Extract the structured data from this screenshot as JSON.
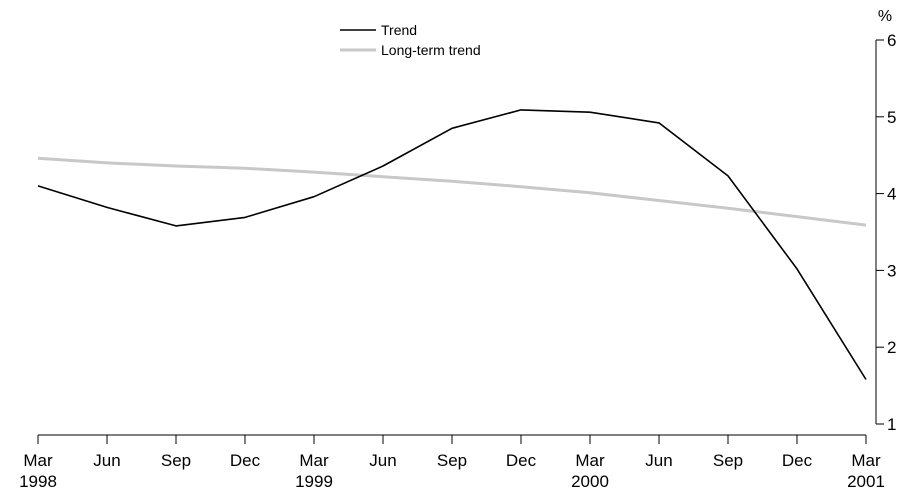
{
  "chart_data": {
    "type": "line",
    "title": "",
    "xlabel": "",
    "ylabel": "%",
    "ylim": [
      1,
      6
    ],
    "y_ticks": [
      1,
      2,
      3,
      4,
      5,
      6
    ],
    "y_axis_position": "right",
    "grid": false,
    "legend_position": "top-center",
    "categories": [
      "Mar",
      "Jun",
      "Sep",
      "Dec",
      "Mar",
      "Jun",
      "Sep",
      "Dec",
      "Mar",
      "Jun",
      "Sep",
      "Dec",
      "Mar"
    ],
    "year_labels": [
      {
        "index": 0,
        "label": "1998"
      },
      {
        "index": 4,
        "label": "1999"
      },
      {
        "index": 8,
        "label": "2000"
      },
      {
        "index": 12,
        "label": "2001"
      }
    ],
    "series": [
      {
        "name": "Trend",
        "color": "#000000",
        "values": [
          4.1,
          3.82,
          3.58,
          3.69,
          3.96,
          4.36,
          4.85,
          5.09,
          5.06,
          4.92,
          4.23,
          3.02,
          1.58
        ]
      },
      {
        "name": "Long-term trend",
        "color": "#c8c8c8",
        "values": [
          4.46,
          4.4,
          4.36,
          4.33,
          4.28,
          4.22,
          4.16,
          4.09,
          4.01,
          3.91,
          3.81,
          3.7,
          3.59
        ]
      }
    ]
  }
}
